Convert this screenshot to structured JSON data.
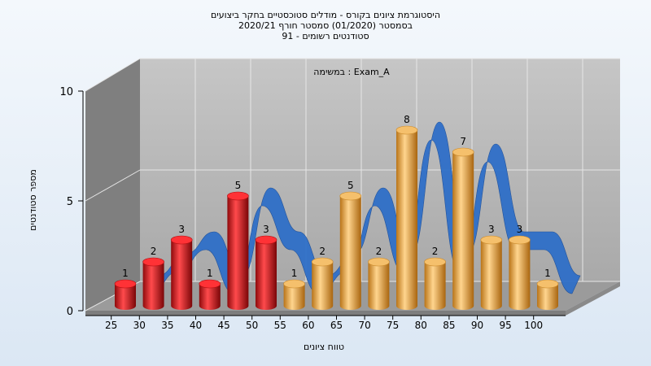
{
  "chart_data": {
    "type": "bar",
    "title_lines": [
      "היסטוגרמת ציונים בקורס - מודלים סטוכסטיים בחקר ביצועים",
      "בסמסטר  (01/2020)  סמסטר חורף  2020/21",
      "סטודנטים רשומים - 91"
    ],
    "annotation": "במשימה : Exam_A",
    "xlabel": "טווח ציונים",
    "ylabel": "מספר סטודנטים",
    "ylim": [
      0,
      10
    ],
    "y_ticks": [
      "0",
      "5",
      "10"
    ],
    "x_ticks": [
      "25",
      "30",
      "35",
      "40",
      "45",
      "50",
      "55",
      "60",
      "65",
      "70",
      "75",
      "80",
      "85",
      "90",
      "95",
      "100"
    ],
    "series": [
      {
        "values": [
          1,
          2,
          3,
          1,
          5,
          3,
          1,
          2,
          5,
          2,
          8,
          2,
          7,
          3,
          3,
          1
        ],
        "colors": [
          "#d9191c",
          "#d9191c",
          "#d9191c",
          "#d9191c",
          "#d9191c",
          "#d9191c",
          "#e6a548",
          "#e6a548",
          "#e6a548",
          "#e6a548",
          "#e6a548",
          "#e6a548",
          "#e6a548",
          "#e6a548",
          "#e6a548",
          "#e6a548"
        ]
      }
    ],
    "ribbon_color": "#2f6fc8",
    "grid": true
  }
}
